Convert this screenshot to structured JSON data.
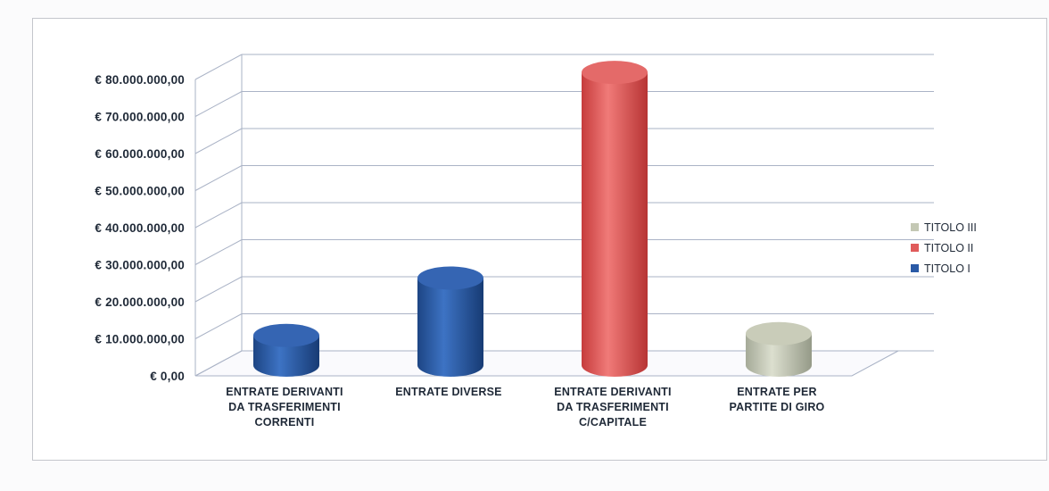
{
  "chart_data": {
    "type": "bar",
    "style": "3d-cylinder",
    "categories": [
      [
        "ENTRATE DERIVANTI",
        "DA TRASFERIMENTI",
        "CORRENTI"
      ],
      [
        "ENTRATE DIVERSE"
      ],
      [
        "ENTRATE DERIVANTI",
        "DA TRASFERIMENTI",
        "C/CAPITALE"
      ],
      [
        "ENTRATE PER",
        "PARTITE DI GIRO"
      ]
    ],
    "series": [
      {
        "name": "TITOLO I",
        "color": "#2a5aa6",
        "values": [
          8000000,
          23500000,
          null,
          null
        ]
      },
      {
        "name": "TITOLO II",
        "color": "#e05b5b",
        "values": [
          null,
          null,
          79000000,
          null
        ]
      },
      {
        "name": "TITOLO III",
        "color": "#c4c8b4",
        "values": [
          null,
          null,
          null,
          8500000
        ]
      }
    ],
    "ylim": [
      0,
      80000000
    ],
    "yticks": [
      "€ 0,00",
      "€ 10.000.000,00",
      "€ 20.000.000,00",
      "€ 30.000.000,00",
      "€ 40.000.000,00",
      "€ 50.000.000,00",
      "€ 60.000.000,00",
      "€ 70.000.000,00",
      "€ 80.000.000,00"
    ],
    "legend": {
      "position": "right",
      "entries": [
        "TITOLO III",
        "TITOLO II",
        "TITOLO I"
      ]
    },
    "grid": true
  }
}
